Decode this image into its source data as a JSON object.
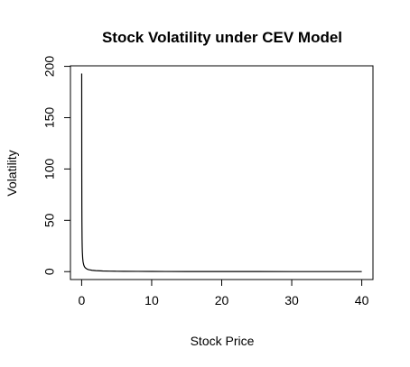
{
  "chart_data": {
    "type": "line",
    "title": "Stock Volatility under CEV Model",
    "xlabel": "Stock Price",
    "ylabel": "Volatility",
    "xlim": [
      -1.6,
      41.6
    ],
    "ylim": [
      -7.7,
      200.5
    ],
    "x_ticks": [
      0,
      10,
      20,
      30,
      40
    ],
    "x_tick_labels": [
      "0",
      "10",
      "20",
      "30",
      "40"
    ],
    "y_ticks": [
      0,
      50,
      100,
      150,
      200
    ],
    "y_tick_labels": [
      "0",
      "50",
      "100",
      "150",
      "200"
    ],
    "grid": false,
    "legend": "none",
    "line_color": "#000000",
    "series": [
      {
        "x": [
          0.01,
          0.02,
          0.03,
          0.04,
          0.06,
          0.08,
          0.1,
          0.15,
          0.2,
          0.3,
          0.4,
          0.5,
          0.75,
          1,
          1.5,
          2,
          3,
          4,
          5,
          6,
          8,
          10,
          12,
          15,
          20,
          25,
          30,
          35,
          40
        ],
        "y": [
          193,
          96.5,
          64.3,
          48.3,
          32.2,
          24.1,
          19.3,
          12.9,
          9.65,
          6.43,
          4.83,
          3.86,
          2.57,
          1.93,
          1.29,
          0.97,
          0.64,
          0.48,
          0.39,
          0.32,
          0.24,
          0.19,
          0.16,
          0.13,
          0.1,
          0.08,
          0.06,
          0.06,
          0.05
        ]
      }
    ]
  }
}
